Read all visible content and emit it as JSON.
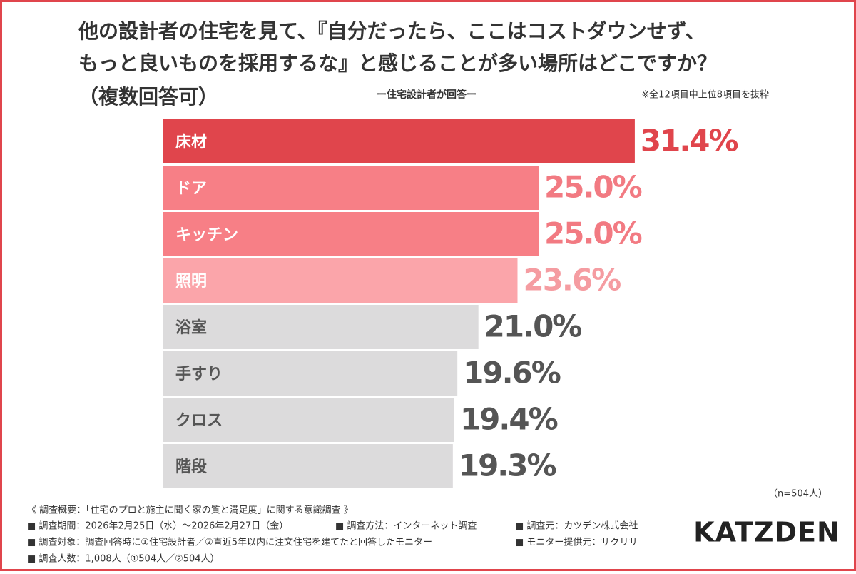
{
  "chart_data": {
    "type": "bar",
    "orientation": "horizontal",
    "title_lines": [
      "他の設計者の住宅を見て、『自分だったら、ここはコストダウンせず、",
      "もっと良いものを採用するな』と感じることが多い場所はどこですか？",
      "（複数回答可）"
    ],
    "subtitle": "ー住宅設計者が回答ー",
    "note": "※全12項目中上位8項目を抜粋",
    "sample_size": "（n=504人）",
    "categories": [
      "床材",
      "ドア",
      "キッチン",
      "照明",
      "浴室",
      "手すり",
      "クロス",
      "階段"
    ],
    "values": [
      31.4,
      25.0,
      25.0,
      23.6,
      21.0,
      19.6,
      19.4,
      19.3
    ],
    "value_labels": [
      "31.4%",
      "25.0%",
      "25.0%",
      "23.6%",
      "21.0%",
      "19.6%",
      "19.4%",
      "19.3%"
    ],
    "colors": [
      "#e0454c",
      "#f77f86",
      "#f77f86",
      "#fba5aa",
      "#dcdbdc",
      "#dcdbdc",
      "#dcdbdc",
      "#dcdbdc"
    ],
    "value_label_colors": [
      "#e0454c",
      "#f27a82",
      "#f27a82",
      "#f59ca1",
      "#555555",
      "#555555",
      "#555555",
      "#555555"
    ],
    "category_label_colors": [
      "#ffffff",
      "#ffffff",
      "#ffffff",
      "#ffffff",
      "#555555",
      "#555555",
      "#555555",
      "#555555"
    ]
  },
  "footer": {
    "heading": "《 調査概要：「住宅のプロと施主に聞く家の質と満足度」に関する意識調査 》",
    "rows": [
      [
        "■ 調査期間：2026年2月25日（水）～2026年2月27日（金）",
        "■ 調査方法：インターネット調査",
        "■ 調査元：カツデン株式会社"
      ],
      [
        "■ 調査対象：調査回答時に①住宅設計者／②直近5年以内に注文住宅を建てたと回答したモニター",
        "■ モニター提供元：サクリサ"
      ],
      [
        "■ 調査人数：1,008人（①504人／②504人）"
      ]
    ]
  },
  "logo": "KATZDEN"
}
